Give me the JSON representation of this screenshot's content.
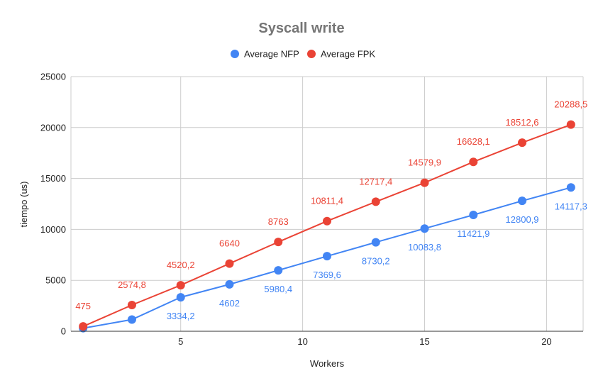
{
  "chart_data": {
    "type": "line",
    "title": "Syscall write",
    "xlabel": "Workers",
    "ylabel": "tiempo (us)",
    "x": [
      1,
      3,
      5,
      7,
      9,
      11,
      13,
      15,
      17,
      19,
      21
    ],
    "xlim": [
      0.5,
      21.5
    ],
    "xticks": [
      5,
      10,
      15,
      20
    ],
    "ylim": [
      0,
      25000
    ],
    "yticks": [
      0,
      5000,
      10000,
      15000,
      20000,
      25000
    ],
    "grid": true,
    "legend_position": "top",
    "series": [
      {
        "name": "Average NFP",
        "color": "#4285f4",
        "values": [
          300,
          1150,
          3334.2,
          4602,
          5980.4,
          7369.6,
          8730.2,
          10083.8,
          11421.9,
          12800.9,
          14117.3
        ],
        "labels": [
          "",
          "",
          "3334,2",
          "4602",
          "5980,4",
          "7369,6",
          "8730,2",
          "10083,8",
          "11421,9",
          "12800,9",
          "14117,3"
        ]
      },
      {
        "name": "Average FPK",
        "color": "#ea4335",
        "values": [
          475,
          2574.8,
          4520.2,
          6640,
          8763,
          10811.4,
          12717.4,
          14579.9,
          16628.1,
          18512.6,
          20288.5
        ],
        "labels": [
          "475",
          "2574,8",
          "4520,2",
          "6640",
          "8763",
          "10811,4",
          "12717,4",
          "14579,9",
          "16628,1",
          "18512,6",
          "20288,5"
        ]
      }
    ]
  }
}
